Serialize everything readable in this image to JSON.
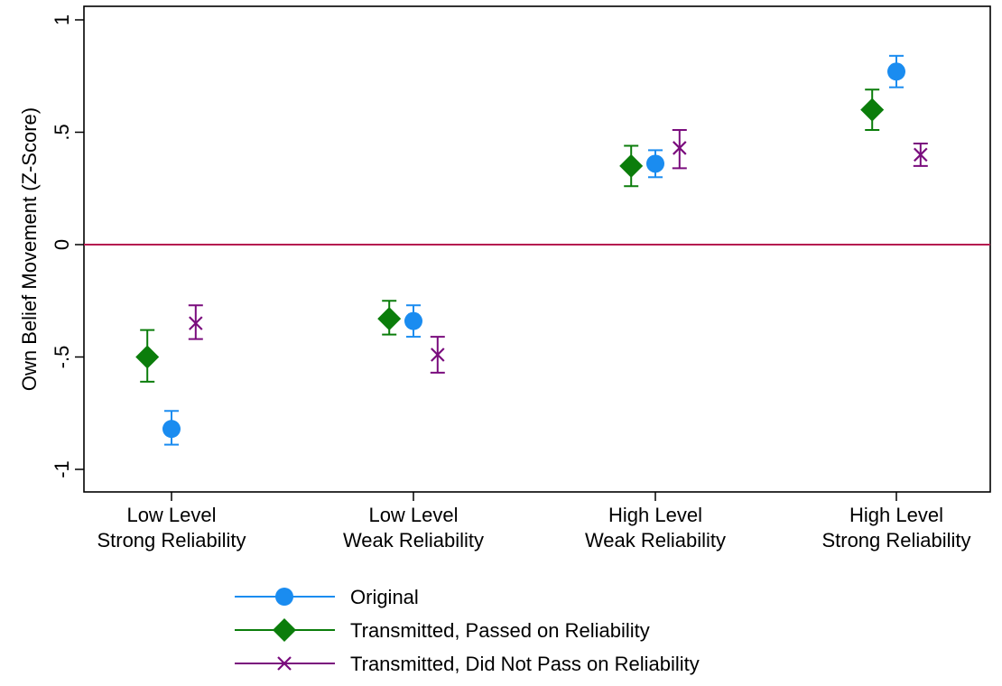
{
  "chart_data": {
    "type": "scatter",
    "title": "",
    "xlabel": "",
    "ylabel": "Own Belief Movement (Z-Score)",
    "ylim": [
      -1.1,
      1.1
    ],
    "yticks": [
      {
        "value": -1,
        "label": "-1"
      },
      {
        "value": -0.5,
        "label": "-.5"
      },
      {
        "value": 0,
        "label": "0"
      },
      {
        "value": 0.5,
        "label": ".5"
      },
      {
        "value": 1,
        "label": "1"
      }
    ],
    "categories": [
      [
        "Low Level",
        "Strong Reliability"
      ],
      [
        "Low Level",
        "Weak Reliability"
      ],
      [
        "High Level",
        "Weak Reliability"
      ],
      [
        "High Level",
        "Strong Reliability"
      ]
    ],
    "reference_line": {
      "y": 0,
      "color": "#b5164f"
    },
    "grid": false,
    "legend_position": "bottom",
    "series": [
      {
        "name": "Original",
        "marker": "circle",
        "color": "#1a8cf0",
        "offset": 0,
        "values": [
          -0.82,
          -0.34,
          0.36,
          0.77
        ],
        "ci_low": [
          -0.89,
          -0.41,
          0.3,
          0.7
        ],
        "ci_high": [
          -0.74,
          -0.27,
          0.42,
          0.84
        ]
      },
      {
        "name": "Transmitted, Passed on Reliability",
        "marker": "diamond",
        "color": "#0b7d0b",
        "offset": -0.1,
        "values": [
          -0.5,
          -0.33,
          0.35,
          0.6
        ],
        "ci_low": [
          -0.61,
          -0.4,
          0.26,
          0.51
        ],
        "ci_high": [
          -0.38,
          -0.25,
          0.44,
          0.69
        ]
      },
      {
        "name": "Transmitted, Did Not Pass on Reliability",
        "marker": "x",
        "color": "#7a0c7d",
        "offset": 0.1,
        "values": [
          -0.35,
          -0.49,
          0.43,
          0.4
        ],
        "ci_low": [
          -0.42,
          -0.57,
          0.34,
          0.35
        ],
        "ci_high": [
          -0.27,
          -0.41,
          0.51,
          0.45
        ]
      }
    ]
  }
}
